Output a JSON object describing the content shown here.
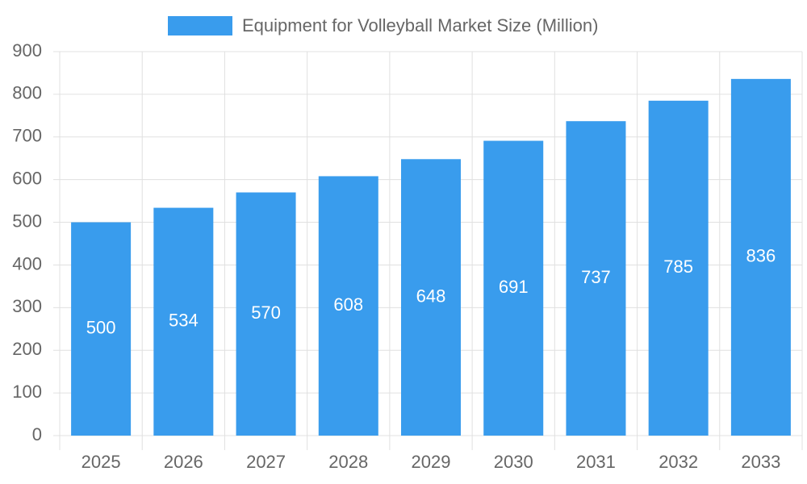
{
  "chart_data": {
    "type": "bar",
    "categories": [
      "2025",
      "2026",
      "2027",
      "2028",
      "2029",
      "2030",
      "2031",
      "2032",
      "2033"
    ],
    "series": [
      {
        "name": "Equipment for Volleyball Market Size (Million)",
        "color": "#399ced",
        "values": [
          500,
          534,
          570,
          608,
          648,
          691,
          737,
          785,
          836
        ]
      }
    ],
    "ylim": [
      0,
      900
    ],
    "yticks": [
      0,
      100,
      200,
      300,
      400,
      500,
      600,
      700,
      800,
      900
    ],
    "grid": true,
    "legend": "top",
    "data_labels": true
  }
}
